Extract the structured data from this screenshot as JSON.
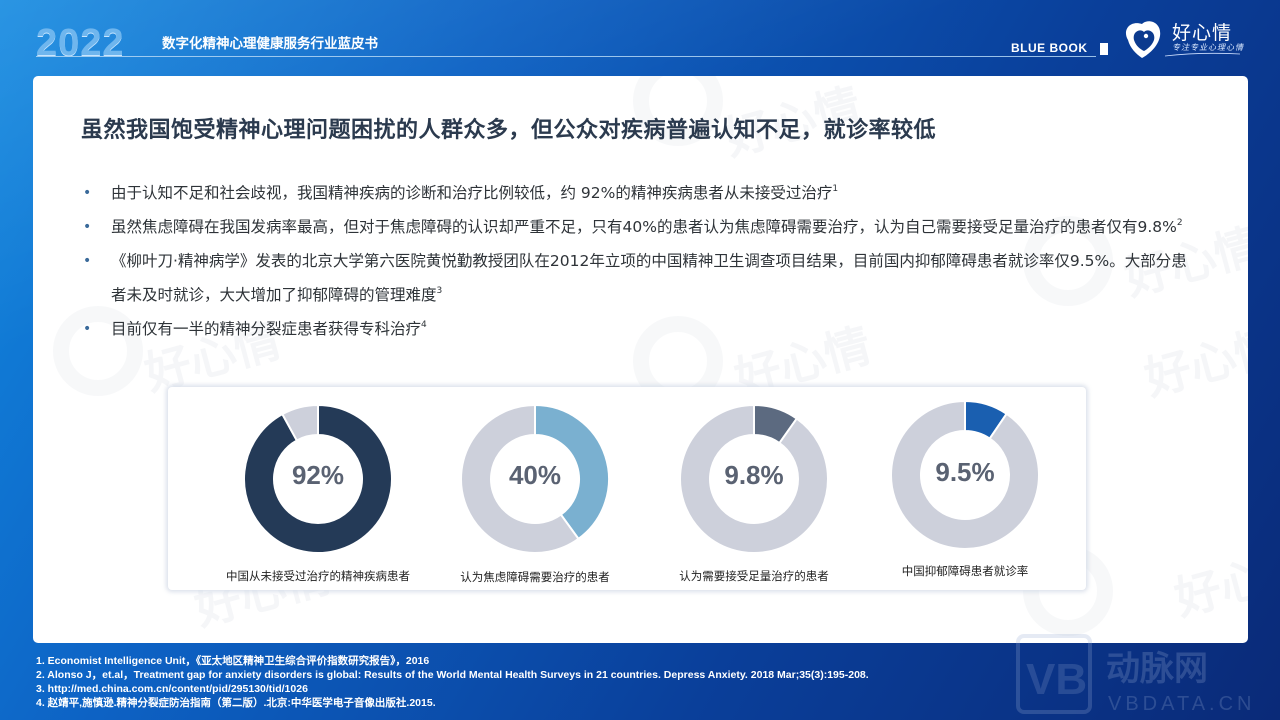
{
  "header": {
    "year": "2022",
    "report_title": "数字化精神心理健康服务行业蓝皮书",
    "series_label": "BLUE BOOK",
    "brand_name": "好心情",
    "brand_slogan": "专注专业心理心情"
  },
  "page": {
    "title": "虽然我国饱受精神心理问题困扰的人群众多，但公众对疾病普遍认知不足，就诊率较低",
    "bullets": [
      {
        "text": "由于认知不足和社会歧视，我国精神疾病的诊断和治疗比例较低，约 92%的精神疾病患者从未接受过治疗",
        "ref": "1"
      },
      {
        "text": "虽然焦虑障碍在我国发病率最高，但对于焦虑障碍的认识却严重不足，只有40%的患者认为焦虑障碍需要治疗，认为自己需要接受足量治疗的患者仅有9.8%",
        "ref": "2"
      },
      {
        "text": "《柳叶刀·精神病学》发表的北京大学第六医院黄悦勤教授团队在2012年立项的中国精神卫生调查项目结果，目前国内抑郁障碍患者就诊率仅9.5%。大部分患者未及时就诊，大大增加了抑郁障碍的管理难度",
        "ref": "3"
      },
      {
        "text": "目前仅有一半的精神分裂症患者获得专科治疗",
        "ref": "4"
      }
    ]
  },
  "chart_data": {
    "type": "pie",
    "subtype": "donut",
    "title": "",
    "charts": [
      {
        "label": "中国从未接受过治疗的精神疾病患者",
        "value": 92,
        "display": "92%",
        "color": "#243a57",
        "rest_color": "#cdd0db"
      },
      {
        "label": "认为焦虑障碍需要治疗的患者",
        "value": 40,
        "display": "40%",
        "color": "#7ab0d0",
        "rest_color": "#cdd0db"
      },
      {
        "label": "认为需要接受足量治疗的患者",
        "value": 9.8,
        "display": "9.8%",
        "color": "#5c6a80",
        "rest_color": "#cdd0db"
      },
      {
        "label": "中国抑郁障碍患者就诊率",
        "value": 9.5,
        "display": "9.5%",
        "color": "#1a5fb0",
        "rest_color": "#cdd0db"
      }
    ]
  },
  "footnotes": [
    "1. Economist  Intelligence Unit，《亚太地区精神卫生综合评价指数研究报告》，2016",
    "2. Alonso J，et.al，Treatment gap for anxiety disorders is global: Results of the World Mental Health Surveys in 21 countries. Depress Anxiety. 2018 Mar;35(3):195-208.",
    "3. http://med.china.com.cn/content/pid/295130/tid/1026",
    "4. 赵靖平,施慎逊.精神分裂症防治指南（第二版）.北京:中华医学电子音像出版社.2015."
  ],
  "watermark": {
    "brand": "好心情",
    "site": "VBDATA.CN",
    "site_cn": "动脉网"
  }
}
